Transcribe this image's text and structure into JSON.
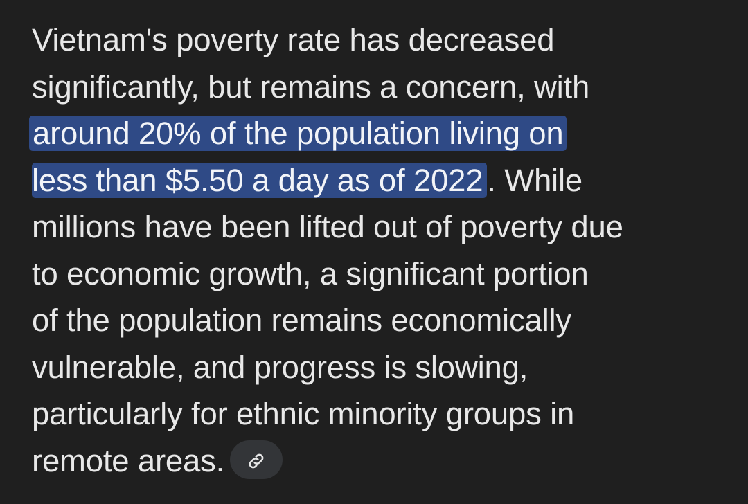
{
  "answer": {
    "line1": "Vietnam's poverty rate has decreased",
    "line2": "significantly, but remains a concern, with",
    "line3_highlight": "around 20% of the population living on",
    "line4_highlight": "less than $5.50 a day as of 2022",
    "line4_rest": ". While",
    "line5": "millions have been lifted out of poverty due",
    "line6": "to economic growth, a significant portion",
    "line7": "of the population remains economically",
    "line8": "vulnerable, and progress is slowing,",
    "line9": "particularly for ethnic minority groups in",
    "line10": "remote areas."
  },
  "source_chip": {
    "icon": "link-icon"
  },
  "colors": {
    "background": "#1f1f1f",
    "text": "#e8e8e8",
    "highlight": "#2f4a86",
    "chip": "#333538"
  }
}
